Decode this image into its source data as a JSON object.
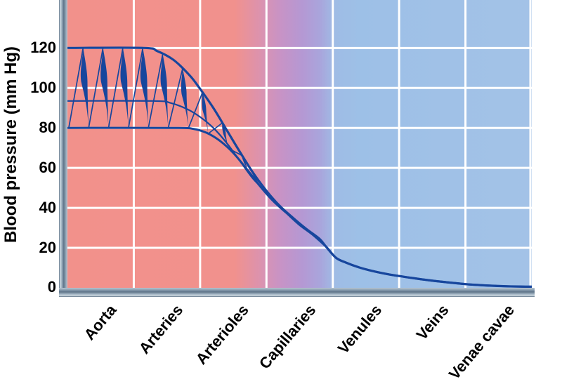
{
  "page": {
    "background": "#ffffff"
  },
  "chart_data": {
    "type": "line",
    "title": "",
    "xlabel": "",
    "ylabel": "Blood pressure (mm Hg)",
    "ylim": [
      0,
      144
    ],
    "yticks_top_to_bottom": [
      120,
      100,
      80,
      60,
      40,
      20,
      0
    ],
    "grid": "on-white",
    "legend": "none",
    "categories": [
      "Aorta",
      "Arteries",
      "Arterioles",
      "Capillaries",
      "Venules",
      "Veins",
      "Venae cavae"
    ],
    "x_axis_note": "x in category units, 0 = left edge of Aorta, 7 = right edge of Venae cavae",
    "series": [
      {
        "name": "systolic-envelope",
        "points": [
          [
            0,
            120
          ],
          [
            1.15,
            120
          ],
          [
            1.35,
            118.5
          ],
          [
            1.6,
            114
          ],
          [
            1.85,
            106
          ],
          [
            2.0,
            99.5
          ],
          [
            2.2,
            90
          ],
          [
            2.4,
            79
          ],
          [
            2.6,
            68
          ],
          [
            2.8,
            57.5
          ],
          [
            3.0,
            48.5
          ],
          [
            3.2,
            41
          ],
          [
            3.4,
            35
          ],
          [
            3.6,
            29.5
          ],
          [
            3.8,
            24.5
          ],
          [
            3.9,
            20.5
          ],
          [
            4.05,
            15
          ],
          [
            4.2,
            12.6
          ],
          [
            4.4,
            10.2
          ],
          [
            4.6,
            8.4
          ],
          [
            4.8,
            7.0
          ],
          [
            5.0,
            5.9
          ],
          [
            5.2,
            4.9
          ],
          [
            5.4,
            4.0
          ],
          [
            5.6,
            3.2
          ],
          [
            5.8,
            2.5
          ],
          [
            6.0,
            1.85
          ],
          [
            6.2,
            1.4
          ],
          [
            6.4,
            1.05
          ],
          [
            6.6,
            0.8
          ],
          [
            6.8,
            0.65
          ],
          [
            7.0,
            0.55
          ]
        ]
      },
      {
        "name": "mean-pressure",
        "points": [
          [
            0,
            93.5
          ],
          [
            1.3,
            93.5
          ],
          [
            1.55,
            92.5
          ],
          [
            1.8,
            89.5
          ],
          [
            2.0,
            85.5
          ],
          [
            2.2,
            80
          ],
          [
            2.4,
            72.5
          ],
          [
            2.6,
            63.5
          ],
          [
            2.8,
            54.5
          ],
          [
            3.0,
            47.9
          ],
          [
            3.2,
            40.7
          ],
          [
            3.4,
            34.7
          ],
          [
            3.6,
            29.2
          ],
          [
            3.8,
            24
          ],
          [
            3.9,
            20.5
          ],
          [
            4.05,
            15
          ],
          [
            4.2,
            12.6
          ],
          [
            4.4,
            10.2
          ],
          [
            4.6,
            8.4
          ],
          [
            4.8,
            7.0
          ],
          [
            5.0,
            5.9
          ],
          [
            5.2,
            4.9
          ],
          [
            5.4,
            4.0
          ],
          [
            5.6,
            3.2
          ],
          [
            5.8,
            2.5
          ],
          [
            6.0,
            1.85
          ],
          [
            6.2,
            1.4
          ],
          [
            6.4,
            1.05
          ],
          [
            6.6,
            0.8
          ],
          [
            6.8,
            0.65
          ],
          [
            7.0,
            0.55
          ]
        ]
      },
      {
        "name": "diastolic-envelope",
        "points": [
          [
            0,
            80
          ],
          [
            1.6,
            80
          ],
          [
            1.9,
            79.5
          ],
          [
            2.1,
            77.5
          ],
          [
            2.3,
            73.5
          ],
          [
            2.5,
            67.5
          ],
          [
            2.7,
            59.5
          ],
          [
            2.9,
            51
          ],
          [
            3.1,
            43.5
          ],
          [
            3.3,
            37.5
          ],
          [
            3.5,
            31.5
          ],
          [
            3.7,
            26.5
          ],
          [
            3.9,
            20.5
          ],
          [
            4.05,
            15
          ],
          [
            4.2,
            12.6
          ],
          [
            4.4,
            10.2
          ],
          [
            4.6,
            8.4
          ],
          [
            4.8,
            7.0
          ],
          [
            5.0,
            5.9
          ],
          [
            5.2,
            4.9
          ],
          [
            5.4,
            4.0
          ],
          [
            5.6,
            3.2
          ],
          [
            5.8,
            2.5
          ],
          [
            6.0,
            1.85
          ],
          [
            6.2,
            1.4
          ],
          [
            6.4,
            1.05
          ],
          [
            6.6,
            0.8
          ],
          [
            6.8,
            0.65
          ],
          [
            7.0,
            0.55
          ]
        ]
      }
    ],
    "pulse": {
      "description": "pulsatile waveform oscillating between diastolic and systolic envelopes, damping out through the arterioles",
      "period_units": 0.3,
      "upstroke_fraction": 0.72,
      "start_unit": 0.02,
      "min_amplitude_mmHg": 3
    },
    "colors": {
      "curve": "#17469d",
      "grid": "#ffffff",
      "tick_label": "#000000",
      "bg_arterial": "#f2918b",
      "bg_capillary": "#b598d3",
      "bg_venous": "#a3c2e7",
      "bg_stops": [
        {
          "offset": 0,
          "color": "#f2918b"
        },
        {
          "offset": 0.36,
          "color": "#f1918d"
        },
        {
          "offset": 0.425,
          "color": "#d893b4"
        },
        {
          "offset": 0.46,
          "color": "#c793c6"
        },
        {
          "offset": 0.505,
          "color": "#b598d3"
        },
        {
          "offset": 0.545,
          "color": "#a9a5dc"
        },
        {
          "offset": 0.575,
          "color": "#9fbce5"
        },
        {
          "offset": 0.63,
          "color": "#9dc0e7"
        },
        {
          "offset": 1,
          "color": "#a3c2e7"
        }
      ],
      "axis_bar_stops": [
        {
          "offset": 0,
          "color": "#b9c6d1"
        },
        {
          "offset": 0.22,
          "color": "#8ba0b2"
        },
        {
          "offset": 0.45,
          "color": "#5f7489"
        },
        {
          "offset": 0.68,
          "color": "#9fb2c1"
        },
        {
          "offset": 0.85,
          "color": "#cfdbe3"
        },
        {
          "offset": 1,
          "color": "#5d7085"
        }
      ]
    }
  }
}
